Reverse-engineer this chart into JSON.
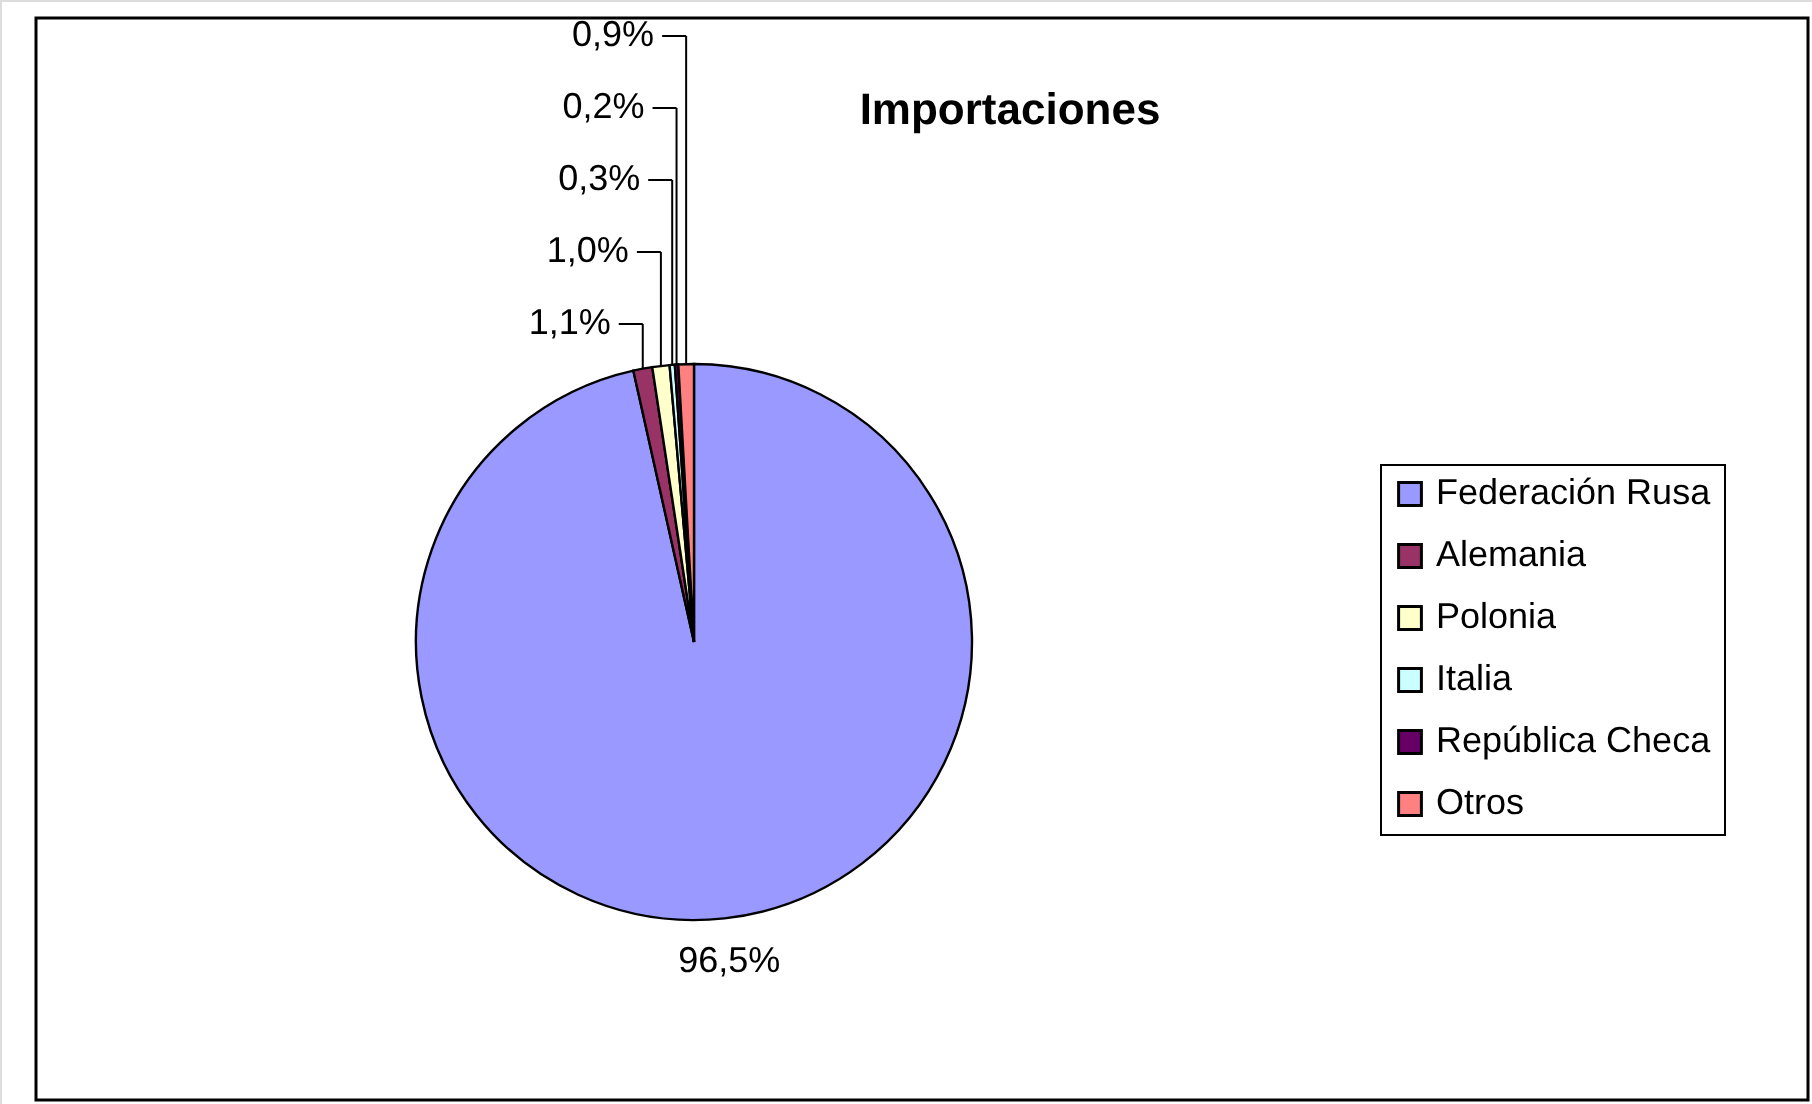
{
  "chart_data": {
    "type": "pie",
    "title": "Importaciones",
    "categories": [
      "Federación Rusa",
      "Alemania",
      "Polonia",
      "Italia",
      "República Checa",
      "Otros"
    ],
    "values": [
      96.5,
      1.1,
      1.0,
      0.3,
      0.2,
      0.9
    ],
    "value_labels": [
      "96,5%",
      "1,1%",
      "1,0%",
      "0,3%",
      "0,2%",
      "0,9%"
    ],
    "colors": [
      "#9999ff",
      "#993366",
      "#ffffcc",
      "#ccffff",
      "#660066",
      "#ff8080"
    ],
    "legend": "right"
  }
}
